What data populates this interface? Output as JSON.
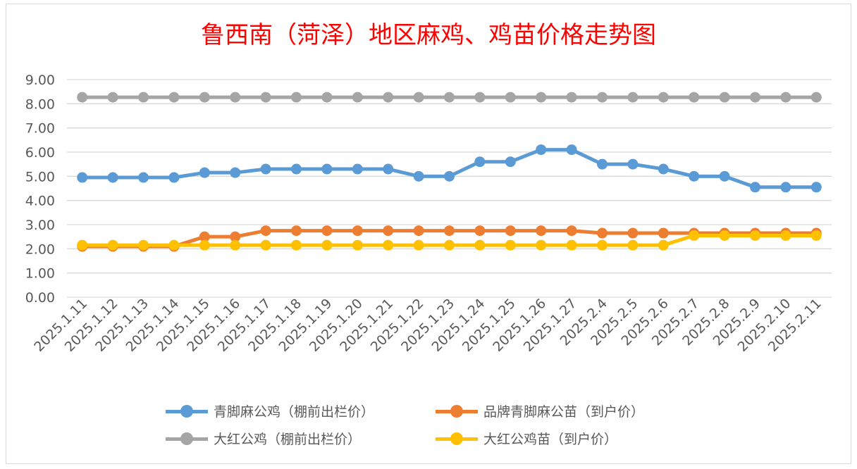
{
  "chart_data": {
    "type": "line",
    "title": "鲁西南（菏泽）地区麻鸡、鸡苗价格走势图",
    "xlabel": "",
    "ylabel": "",
    "ylim": [
      0,
      9
    ],
    "yticks": [
      "0.00",
      "1.00",
      "2.00",
      "3.00",
      "4.00",
      "5.00",
      "6.00",
      "7.00",
      "8.00",
      "9.00"
    ],
    "grid": true,
    "legend_position": "bottom",
    "categories": [
      "2025.1.11",
      "2025.1.12",
      "2025.1.13",
      "2025.1.14",
      "2025.1.15",
      "2025.1.16",
      "2025.1.17",
      "2025.1.18",
      "2025.1.19",
      "2025.1.20",
      "2025.1.21",
      "2025.1.22",
      "2025.1.23",
      "2025.1.24",
      "2025.1.25",
      "2025.1.26",
      "2025.1.27",
      "2025.2.4",
      "2025.2.5",
      "2025.2.6",
      "2025.2.7",
      "2025.2.8",
      "2025.2.9",
      "2025.2.10",
      "2025.2.11"
    ],
    "series": [
      {
        "name": "青脚麻公鸡（棚前出栏价）",
        "color": "#5b9bd5",
        "values": [
          4.95,
          4.95,
          4.95,
          4.95,
          5.15,
          5.15,
          5.3,
          5.3,
          5.3,
          5.3,
          5.3,
          5.0,
          5.0,
          5.6,
          5.6,
          6.1,
          6.1,
          5.5,
          5.5,
          5.3,
          5.0,
          5.0,
          4.55,
          4.55,
          4.55
        ]
      },
      {
        "name": "品牌青脚麻公苗（到户价）",
        "color": "#ed7d31",
        "values": [
          2.1,
          2.1,
          2.1,
          2.1,
          2.5,
          2.5,
          2.75,
          2.75,
          2.75,
          2.75,
          2.75,
          2.75,
          2.75,
          2.75,
          2.75,
          2.75,
          2.75,
          2.65,
          2.65,
          2.65,
          2.65,
          2.65,
          2.65,
          2.65,
          2.65
        ]
      },
      {
        "name": "大红公鸡（棚前出栏价）",
        "color": "#a5a5a5",
        "values": [
          8.27,
          8.27,
          8.27,
          8.27,
          8.27,
          8.27,
          8.27,
          8.27,
          8.27,
          8.27,
          8.27,
          8.27,
          8.27,
          8.27,
          8.27,
          8.27,
          8.27,
          8.27,
          8.27,
          8.27,
          8.27,
          8.27,
          8.27,
          8.27,
          8.27
        ]
      },
      {
        "name": "大红公鸡苗（到户价）",
        "color": "#ffc000",
        "values": [
          2.15,
          2.15,
          2.15,
          2.15,
          2.15,
          2.15,
          2.15,
          2.15,
          2.15,
          2.15,
          2.15,
          2.15,
          2.15,
          2.15,
          2.15,
          2.15,
          2.15,
          2.15,
          2.15,
          2.15,
          2.55,
          2.55,
          2.55,
          2.55,
          2.55
        ]
      }
    ]
  }
}
